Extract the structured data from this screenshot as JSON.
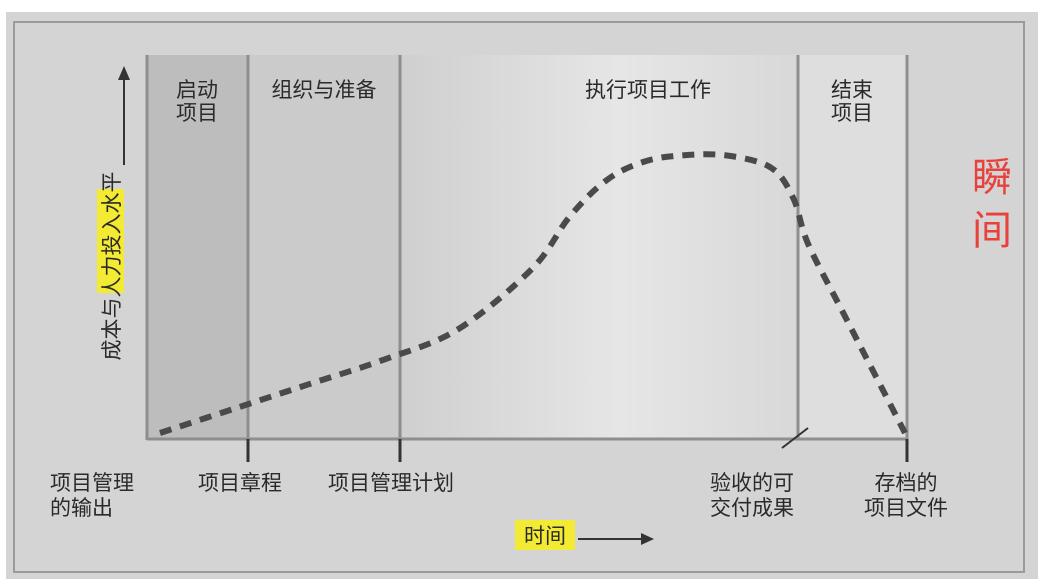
{
  "chart_data": {
    "type": "line",
    "title": "",
    "xlabel": "时间",
    "ylabel": "成本与人力投入水平",
    "ylabel_highlight": "人力投入",
    "grid": false,
    "phases": [
      "启动\n项目",
      "组织与准备",
      "执行项目工作",
      "结束\n项目"
    ],
    "milestones": [
      "项目管理\n的输出",
      "项目章程",
      "项目管理计划",
      "验收的可\n交付成果",
      "存档的\n项目文件"
    ],
    "series": [
      {
        "name": "",
        "style": "dashed",
        "x": [
          0,
          0.1,
          0.2,
          0.3,
          0.4,
          0.5,
          0.55,
          0.6,
          0.65,
          0.7,
          0.76,
          0.82,
          0.85,
          0.87,
          0.92,
          1.0
        ],
        "values": [
          0.0,
          0.08,
          0.16,
          0.24,
          0.34,
          0.54,
          0.71,
          0.83,
          0.89,
          0.91,
          0.91,
          0.87,
          0.77,
          0.62,
          0.38,
          0.0
        ]
      }
    ],
    "background_colors": {
      "initiation": "#bdbdbd",
      "preparation": "#cbcbcb",
      "execution": "#d6d6d6",
      "closing": "#dedede"
    }
  },
  "annotations": {
    "side_text": [
      "瞬",
      "间"
    ]
  }
}
